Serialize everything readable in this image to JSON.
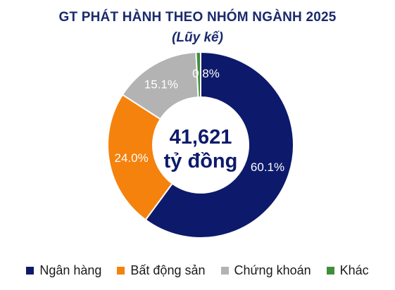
{
  "chart_data": {
    "type": "pie",
    "title": "GT PHÁT HÀNH THEO NHÓM NGÀNH 2025",
    "subtitle": "(Lũy kế)",
    "center_value": "41,621",
    "center_unit": "tỷ đồng",
    "legend_position": "bottom",
    "slices": [
      {
        "name": "Ngân hàng",
        "value": 60.1,
        "label": "60.1%",
        "color": "#0d1a6b",
        "label_color": "#ffffff"
      },
      {
        "name": "Bất động sản",
        "value": 24.0,
        "label": "24.0%",
        "color": "#f5820d",
        "label_color": "#ffffff"
      },
      {
        "name": "Chứng khoán",
        "value": 15.1,
        "label": "15.1%",
        "color": "#b3b3b3",
        "label_color": "#ffffff"
      },
      {
        "name": "Khác",
        "value": 0.8,
        "label": "0.8%",
        "color": "#3f8f3a",
        "label_color": "#ffffff"
      }
    ]
  }
}
